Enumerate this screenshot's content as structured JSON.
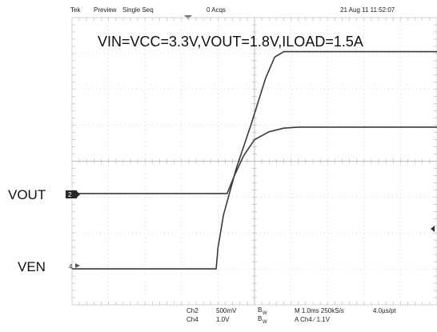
{
  "header": {
    "brand": "Tek",
    "mode": "Preview",
    "acq_mode": "Single Seq",
    "acqs": "0 Acqs",
    "datetime": "21 Aug 11 11:52:07"
  },
  "title": "VIN=VCC=3.3V,VOUT=1.8V,ILOAD=1.5A",
  "channel_labels": {
    "vout": "VOUT",
    "ven": "VEN"
  },
  "markers": {
    "ch2": "2",
    "ch4": "4"
  },
  "footer": {
    "ch2_name": "Ch2",
    "ch4_name": "Ch4",
    "ch2_scale": "500mV",
    "ch4_scale": "1.0V",
    "bw_1": "B",
    "bw_1_sub": "W",
    "bw_2": "B",
    "bw_2_sub": "W",
    "timebase": "M 1.0ms 250kS/s",
    "trigger": "A  Ch4  ∕  1.1V",
    "resolution": "4.0µs/pt"
  },
  "chart_data": {
    "type": "line",
    "title": "VIN=VCC=3.3V,VOUT=1.8V,ILOAD=1.5A",
    "grid": true,
    "xlim": [
      0,
      10
    ],
    "ylim": [
      -4,
      4
    ],
    "series": [
      {
        "name": "VOUT",
        "x": [
          0,
          1.5,
          3.0,
          4.25,
          4.45,
          4.7,
          5.0,
          5.4,
          5.8,
          6.2,
          7.0,
          8.0,
          9.0,
          10.0
        ],
        "y": [
          -0.9,
          -0.9,
          -0.9,
          -0.9,
          -0.4,
          0.15,
          0.6,
          0.82,
          0.92,
          0.95,
          0.95,
          0.95,
          0.95,
          0.95
        ]
      },
      {
        "name": "VEN",
        "x": [
          0,
          1.5,
          3.0,
          3.95,
          4.0,
          4.15,
          4.5,
          4.9,
          5.3,
          5.55,
          5.8,
          7.0,
          8.0,
          9.0,
          10.0
        ],
        "y": [
          -3.0,
          -3.0,
          -3.0,
          -3.0,
          -2.4,
          -1.5,
          -0.2,
          1.0,
          2.3,
          2.9,
          3.05,
          3.05,
          3.05,
          3.05,
          3.05
        ]
      }
    ]
  }
}
